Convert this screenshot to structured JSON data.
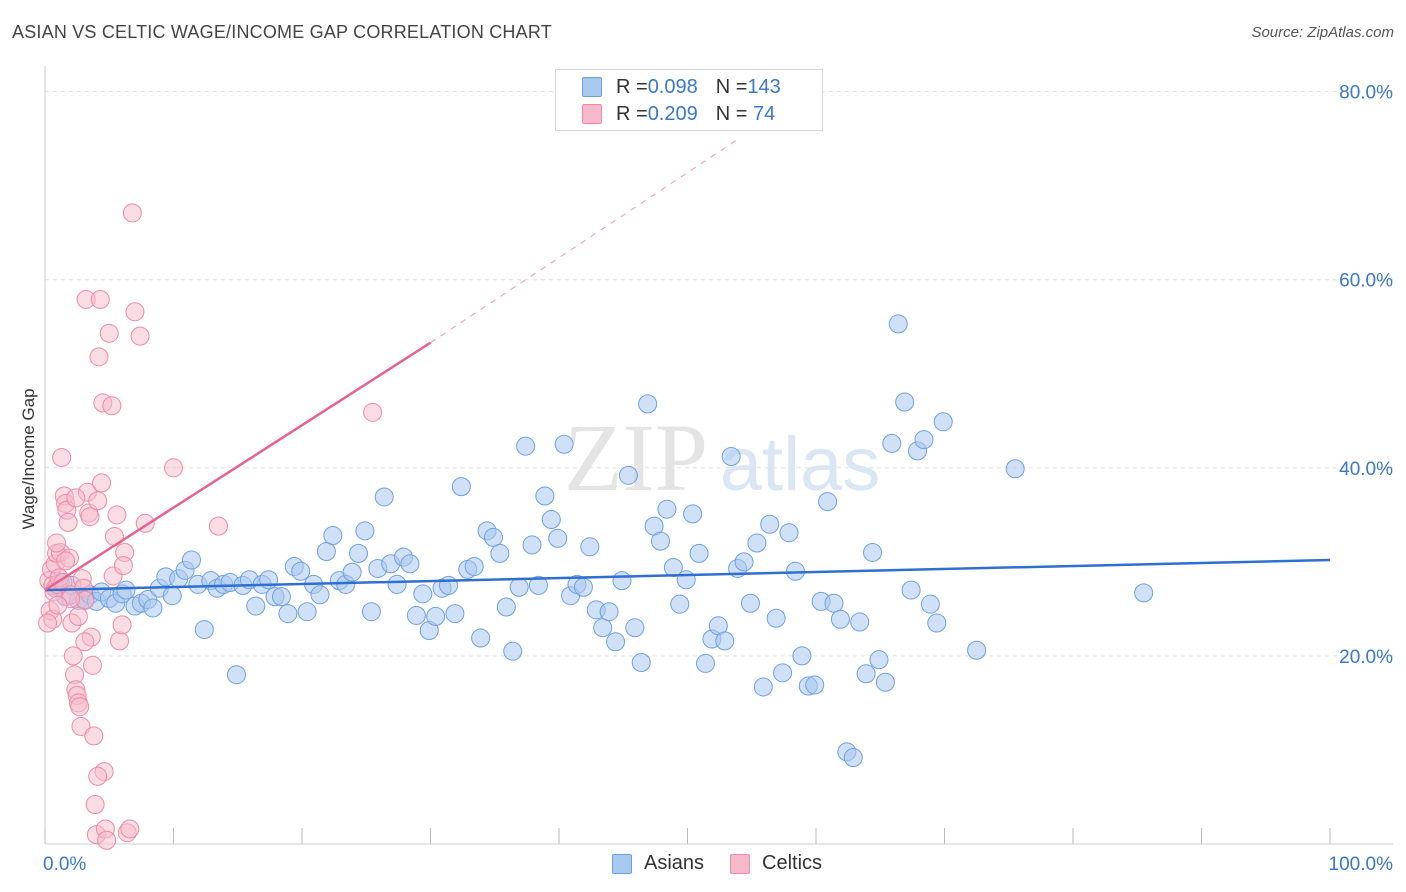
{
  "title": "ASIAN VS CELTIC WAGE/INCOME GAP CORRELATION CHART",
  "source": "Source: ZipAtlas.com",
  "watermark": {
    "zip": "ZIP",
    "atlas": "atlas"
  },
  "legend": {
    "rows": [
      {
        "r_label": "R = ",
        "r_value": "0.098",
        "n_label": "N = ",
        "n_value": "143",
        "color": "#a9c8f0"
      },
      {
        "r_label": "R = ",
        "r_value": "0.209",
        "n_label": "N = ",
        "n_value": " 74",
        "color": "#f6b9cc"
      }
    ]
  },
  "bottom_legend": [
    "Asians",
    "Celtics"
  ],
  "colors": {
    "asians_fill": "#a9c8f0",
    "asians_stroke": "#6fa0e0",
    "asians_line": "#2f6fcf",
    "celtics_fill": "#f6b9cc",
    "celtics_stroke": "#ee8aa8",
    "celtics_line": "#e5638f",
    "axis_label": "#3a78c9",
    "grid": "#e0e0e0"
  },
  "chart_data": {
    "type": "scatter",
    "title": "ASIAN VS CELTIC WAGE/INCOME GAP CORRELATION CHART",
    "xlabel": "",
    "ylabel": "Wage/Income Gap",
    "xlim": [
      0,
      100
    ],
    "ylim": [
      0,
      84
    ],
    "x_tick_labels": [
      "0.0%",
      "100.0%"
    ],
    "y_ticks": [
      20,
      40,
      60,
      80
    ],
    "y_tick_labels": [
      "20.0%",
      "40.0%",
      "60.0%",
      "80.0%"
    ],
    "grid": true,
    "legend_position": "top-center",
    "series": [
      {
        "name": "Asians",
        "trend": {
          "x": [
            0,
            100
          ],
          "y": [
            27.0,
            30.2
          ]
        },
        "points": [
          [
            0.8,
            27.2
          ],
          [
            1.2,
            27.8
          ],
          [
            1.6,
            26.3
          ],
          [
            2.1,
            27.5
          ],
          [
            2.6,
            25.9
          ],
          [
            3.1,
            26.0
          ],
          [
            3.5,
            26.5
          ],
          [
            4.0,
            25.8
          ],
          [
            4.4,
            26.8
          ],
          [
            5.0,
            26.1
          ],
          [
            5.5,
            25.6
          ],
          [
            6.0,
            26.6
          ],
          [
            6.3,
            27.0
          ],
          [
            7.0,
            25.3
          ],
          [
            7.5,
            25.6
          ],
          [
            8.0,
            26.0
          ],
          [
            8.4,
            25.1
          ],
          [
            8.9,
            27.2
          ],
          [
            9.4,
            28.4
          ],
          [
            9.9,
            26.4
          ],
          [
            10.4,
            28.2
          ],
          [
            10.9,
            29.1
          ],
          [
            11.4,
            30.2
          ],
          [
            11.9,
            27.6
          ],
          [
            12.4,
            22.8
          ],
          [
            12.9,
            28.0
          ],
          [
            13.4,
            27.2
          ],
          [
            13.9,
            27.6
          ],
          [
            14.4,
            27.8
          ],
          [
            14.9,
            18.0
          ],
          [
            15.4,
            27.5
          ],
          [
            15.9,
            28.1
          ],
          [
            16.4,
            25.3
          ],
          [
            16.9,
            27.6
          ],
          [
            17.4,
            28.1
          ],
          [
            17.9,
            26.3
          ],
          [
            18.4,
            26.3
          ],
          [
            18.9,
            24.5
          ],
          [
            19.4,
            29.5
          ],
          [
            19.9,
            29.0
          ],
          [
            20.4,
            24.7
          ],
          [
            20.9,
            27.6
          ],
          [
            21.4,
            26.5
          ],
          [
            21.9,
            31.1
          ],
          [
            22.4,
            32.8
          ],
          [
            22.9,
            28.0
          ],
          [
            23.4,
            27.6
          ],
          [
            23.9,
            28.9
          ],
          [
            24.4,
            30.9
          ],
          [
            24.9,
            33.3
          ],
          [
            25.4,
            24.7
          ],
          [
            25.9,
            29.3
          ],
          [
            26.4,
            36.9
          ],
          [
            26.9,
            29.8
          ],
          [
            27.4,
            27.6
          ],
          [
            27.9,
            30.5
          ],
          [
            28.4,
            29.8
          ],
          [
            28.9,
            24.3
          ],
          [
            29.4,
            26.6
          ],
          [
            29.9,
            22.7
          ],
          [
            30.4,
            24.2
          ],
          [
            30.9,
            27.2
          ],
          [
            31.4,
            27.5
          ],
          [
            31.9,
            24.5
          ],
          [
            32.4,
            38.0
          ],
          [
            32.9,
            29.2
          ],
          [
            33.4,
            29.5
          ],
          [
            33.9,
            21.9
          ],
          [
            34.4,
            33.3
          ],
          [
            34.9,
            32.6
          ],
          [
            35.4,
            30.9
          ],
          [
            35.9,
            25.2
          ],
          [
            36.4,
            20.5
          ],
          [
            36.9,
            27.3
          ],
          [
            37.4,
            42.3
          ],
          [
            37.9,
            31.8
          ],
          [
            38.4,
            27.5
          ],
          [
            38.9,
            37.0
          ],
          [
            39.4,
            34.5
          ],
          [
            39.9,
            32.5
          ],
          [
            40.4,
            42.5
          ],
          [
            40.9,
            26.4
          ],
          [
            41.4,
            27.6
          ],
          [
            41.9,
            27.3
          ],
          [
            42.4,
            31.6
          ],
          [
            42.9,
            24.9
          ],
          [
            43.4,
            23.0
          ],
          [
            43.9,
            24.7
          ],
          [
            44.4,
            21.5
          ],
          [
            44.9,
            28.0
          ],
          [
            45.4,
            39.2
          ],
          [
            45.9,
            23.0
          ],
          [
            46.4,
            19.3
          ],
          [
            46.9,
            46.8
          ],
          [
            47.4,
            33.8
          ],
          [
            47.9,
            32.2
          ],
          [
            48.4,
            35.6
          ],
          [
            48.9,
            29.4
          ],
          [
            49.4,
            25.5
          ],
          [
            49.9,
            28.1
          ],
          [
            50.4,
            35.1
          ],
          [
            50.9,
            30.9
          ],
          [
            51.4,
            19.2
          ],
          [
            51.9,
            21.8
          ],
          [
            52.4,
            23.2
          ],
          [
            52.9,
            21.6
          ],
          [
            53.4,
            41.2
          ],
          [
            53.9,
            29.3
          ],
          [
            54.4,
            30.0
          ],
          [
            54.9,
            25.6
          ],
          [
            55.4,
            32.0
          ],
          [
            55.9,
            16.7
          ],
          [
            56.4,
            34.0
          ],
          [
            56.9,
            24.0
          ],
          [
            57.4,
            18.2
          ],
          [
            57.9,
            33.1
          ],
          [
            58.4,
            29.0
          ],
          [
            58.9,
            20.0
          ],
          [
            59.4,
            16.8
          ],
          [
            59.9,
            16.9
          ],
          [
            60.4,
            25.8
          ],
          [
            60.9,
            36.4
          ],
          [
            61.4,
            25.6
          ],
          [
            61.9,
            23.9
          ],
          [
            62.4,
            9.8
          ],
          [
            62.9,
            9.2
          ],
          [
            63.4,
            23.6
          ],
          [
            63.9,
            18.1
          ],
          [
            64.4,
            31.0
          ],
          [
            64.9,
            19.6
          ],
          [
            65.4,
            17.2
          ],
          [
            65.9,
            42.6
          ],
          [
            66.4,
            55.3
          ],
          [
            66.9,
            47.0
          ],
          [
            67.4,
            27.0
          ],
          [
            67.9,
            41.8
          ],
          [
            68.4,
            43.0
          ],
          [
            68.9,
            25.5
          ],
          [
            69.4,
            23.5
          ],
          [
            69.9,
            44.9
          ],
          [
            72.5,
            20.6
          ],
          [
            75.5,
            39.9
          ],
          [
            85.5,
            26.7
          ]
        ]
      },
      {
        "name": "Celtics",
        "trend": {
          "x": [
            0,
            30
          ],
          "y": [
            27.0,
            53.3
          ],
          "dashed_to": [
            54,
            75
          ]
        },
        "points": [
          [
            0.3,
            28.0
          ],
          [
            0.5,
            29.2
          ],
          [
            0.6,
            27.5
          ],
          [
            0.7,
            26.8
          ],
          [
            0.8,
            29.8
          ],
          [
            0.9,
            30.9
          ],
          [
            1.0,
            27.6
          ],
          [
            1.1,
            28.3
          ],
          [
            1.2,
            31.0
          ],
          [
            1.3,
            41.1
          ],
          [
            1.4,
            27.8
          ],
          [
            1.5,
            37.0
          ],
          [
            1.6,
            36.2
          ],
          [
            1.7,
            35.5
          ],
          [
            1.8,
            34.2
          ],
          [
            1.9,
            30.4
          ],
          [
            2.0,
            26.5
          ],
          [
            2.1,
            23.5
          ],
          [
            2.2,
            20.0
          ],
          [
            2.3,
            18.0
          ],
          [
            2.4,
            16.4
          ],
          [
            2.5,
            15.8
          ],
          [
            2.6,
            15.0
          ],
          [
            2.7,
            14.6
          ],
          [
            2.8,
            12.5
          ],
          [
            2.9,
            28.2
          ],
          [
            3.0,
            27.2
          ],
          [
            3.1,
            25.9
          ],
          [
            3.2,
            57.9
          ],
          [
            3.3,
            37.4
          ],
          [
            3.4,
            35.2
          ],
          [
            3.5,
            34.8
          ],
          [
            3.6,
            22.0
          ],
          [
            3.7,
            19.0
          ],
          [
            3.8,
            11.5
          ],
          [
            3.9,
            4.2
          ],
          [
            4.0,
            1.0
          ],
          [
            4.1,
            36.5
          ],
          [
            4.2,
            51.8
          ],
          [
            4.3,
            57.9
          ],
          [
            4.4,
            38.4
          ],
          [
            4.5,
            46.9
          ],
          [
            4.6,
            7.7
          ],
          [
            4.7,
            1.6
          ],
          [
            4.8,
            0.4
          ],
          [
            5.0,
            54.3
          ],
          [
            5.2,
            46.6
          ],
          [
            5.4,
            32.7
          ],
          [
            5.6,
            35.0
          ],
          [
            5.8,
            21.6
          ],
          [
            6.0,
            23.3
          ],
          [
            6.2,
            31.0
          ],
          [
            6.4,
            1.2
          ],
          [
            6.6,
            1.6
          ],
          [
            6.8,
            67.1
          ],
          [
            7.0,
            56.6
          ],
          [
            7.4,
            54.0
          ],
          [
            7.8,
            34.1
          ],
          [
            10.0,
            40.0
          ],
          [
            13.5,
            33.8
          ],
          [
            25.5,
            45.9
          ],
          [
            0.4,
            24.8
          ],
          [
            0.6,
            23.9
          ],
          [
            0.9,
            32.0
          ],
          [
            1.6,
            30.1
          ],
          [
            2.0,
            26.1
          ],
          [
            2.6,
            24.2
          ],
          [
            3.1,
            21.5
          ],
          [
            4.1,
            7.2
          ],
          [
            5.3,
            28.5
          ],
          [
            0.2,
            23.5
          ],
          [
            1.0,
            25.4
          ],
          [
            2.4,
            36.8
          ],
          [
            6.1,
            29.6
          ]
        ]
      }
    ]
  }
}
